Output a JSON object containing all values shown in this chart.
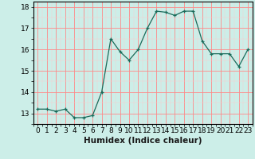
{
  "x": [
    0,
    1,
    2,
    3,
    4,
    5,
    6,
    7,
    8,
    9,
    10,
    11,
    12,
    13,
    14,
    15,
    16,
    17,
    18,
    19,
    20,
    21,
    22,
    23
  ],
  "y": [
    13.2,
    13.2,
    13.1,
    13.2,
    12.8,
    12.8,
    12.9,
    14.0,
    16.5,
    15.9,
    15.5,
    16.0,
    17.0,
    17.8,
    17.75,
    17.6,
    17.8,
    17.8,
    16.4,
    15.8,
    15.8,
    15.8,
    15.2,
    16.0
  ],
  "line_color": "#1a6b5a",
  "marker": "+",
  "marker_size": 3,
  "bg_color": "#cceee8",
  "xlabel": "Humidex (Indice chaleur)",
  "xlim": [
    -0.5,
    23.5
  ],
  "ylim": [
    12.5,
    18.25
  ],
  "yticks": [
    13,
    14,
    15,
    16,
    17,
    18
  ],
  "xtick_labels": [
    "0",
    "1",
    "2",
    "3",
    "4",
    "5",
    "6",
    "7",
    "8",
    "9",
    "10",
    "11",
    "12",
    "13",
    "14",
    "15",
    "16",
    "17",
    "18",
    "19",
    "20",
    "21",
    "22",
    "23"
  ],
  "tick_fontsize": 6.5,
  "xlabel_fontsize": 7.5,
  "major_grid_color": "#ff8888",
  "minor_grid_color": "#ffcccc"
}
